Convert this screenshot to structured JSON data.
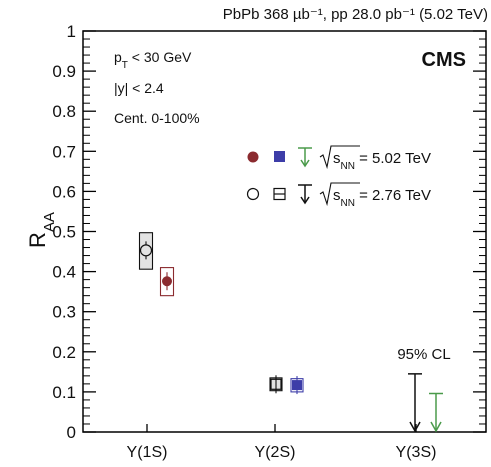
{
  "header": {
    "lumi_text": "PbPb 368 µb⁻¹, pp 28.0 pb⁻¹ (5.02 TeV)"
  },
  "chart_data": {
    "type": "scatter",
    "experiment": "CMS",
    "ylabel": "R_AA",
    "ylim": [
      0,
      1
    ],
    "yticks": [
      "0",
      "0.1",
      "0.2",
      "0.3",
      "0.4",
      "0.5",
      "0.6",
      "0.7",
      "0.8",
      "0.9",
      "1"
    ],
    "categories": [
      "Υ(1S)",
      "Υ(2S)",
      "Υ(3S)"
    ],
    "cuts": [
      "p_T < 30 GeV",
      "|y| < 2.4",
      "Cent. 0-100%"
    ],
    "legend": {
      "entry_502": "√s_NN = 5.02 TeV",
      "entry_276": "√s_NN = 2.76 TeV"
    },
    "series": [
      {
        "name": "√s_NN = 5.02 TeV",
        "color": "#8b2b2f",
        "points": [
          {
            "state": "Υ(1S)",
            "marker": "circle-filled",
            "color": "#8b2b2f",
            "y": 0.376,
            "syst_low": 0.34,
            "syst_high": 0.41
          },
          {
            "state": "Υ(2S)",
            "marker": "square-filled",
            "color": "#3d3da8",
            "y": 0.117,
            "syst_low": 0.1,
            "syst_high": 0.133
          }
        ],
        "upper_limit": {
          "state": "Υ(3S)",
          "value": 0.096,
          "color": "#4a9a4a"
        }
      },
      {
        "name": "√s_NN = 2.76 TeV",
        "color": "#111111",
        "points": [
          {
            "state": "Υ(1S)",
            "marker": "circle-open",
            "color": "#111111",
            "y": 0.453,
            "syst_low": 0.406,
            "syst_high": 0.497
          },
          {
            "state": "Υ(2S)",
            "marker": "square-open",
            "color": "#111111",
            "y": 0.119,
            "syst_low": 0.103,
            "syst_high": 0.135
          }
        ],
        "upper_limit": {
          "state": "Υ(3S)",
          "value": 0.145,
          "color": "#111111"
        }
      }
    ],
    "annotation": "95% CL"
  }
}
